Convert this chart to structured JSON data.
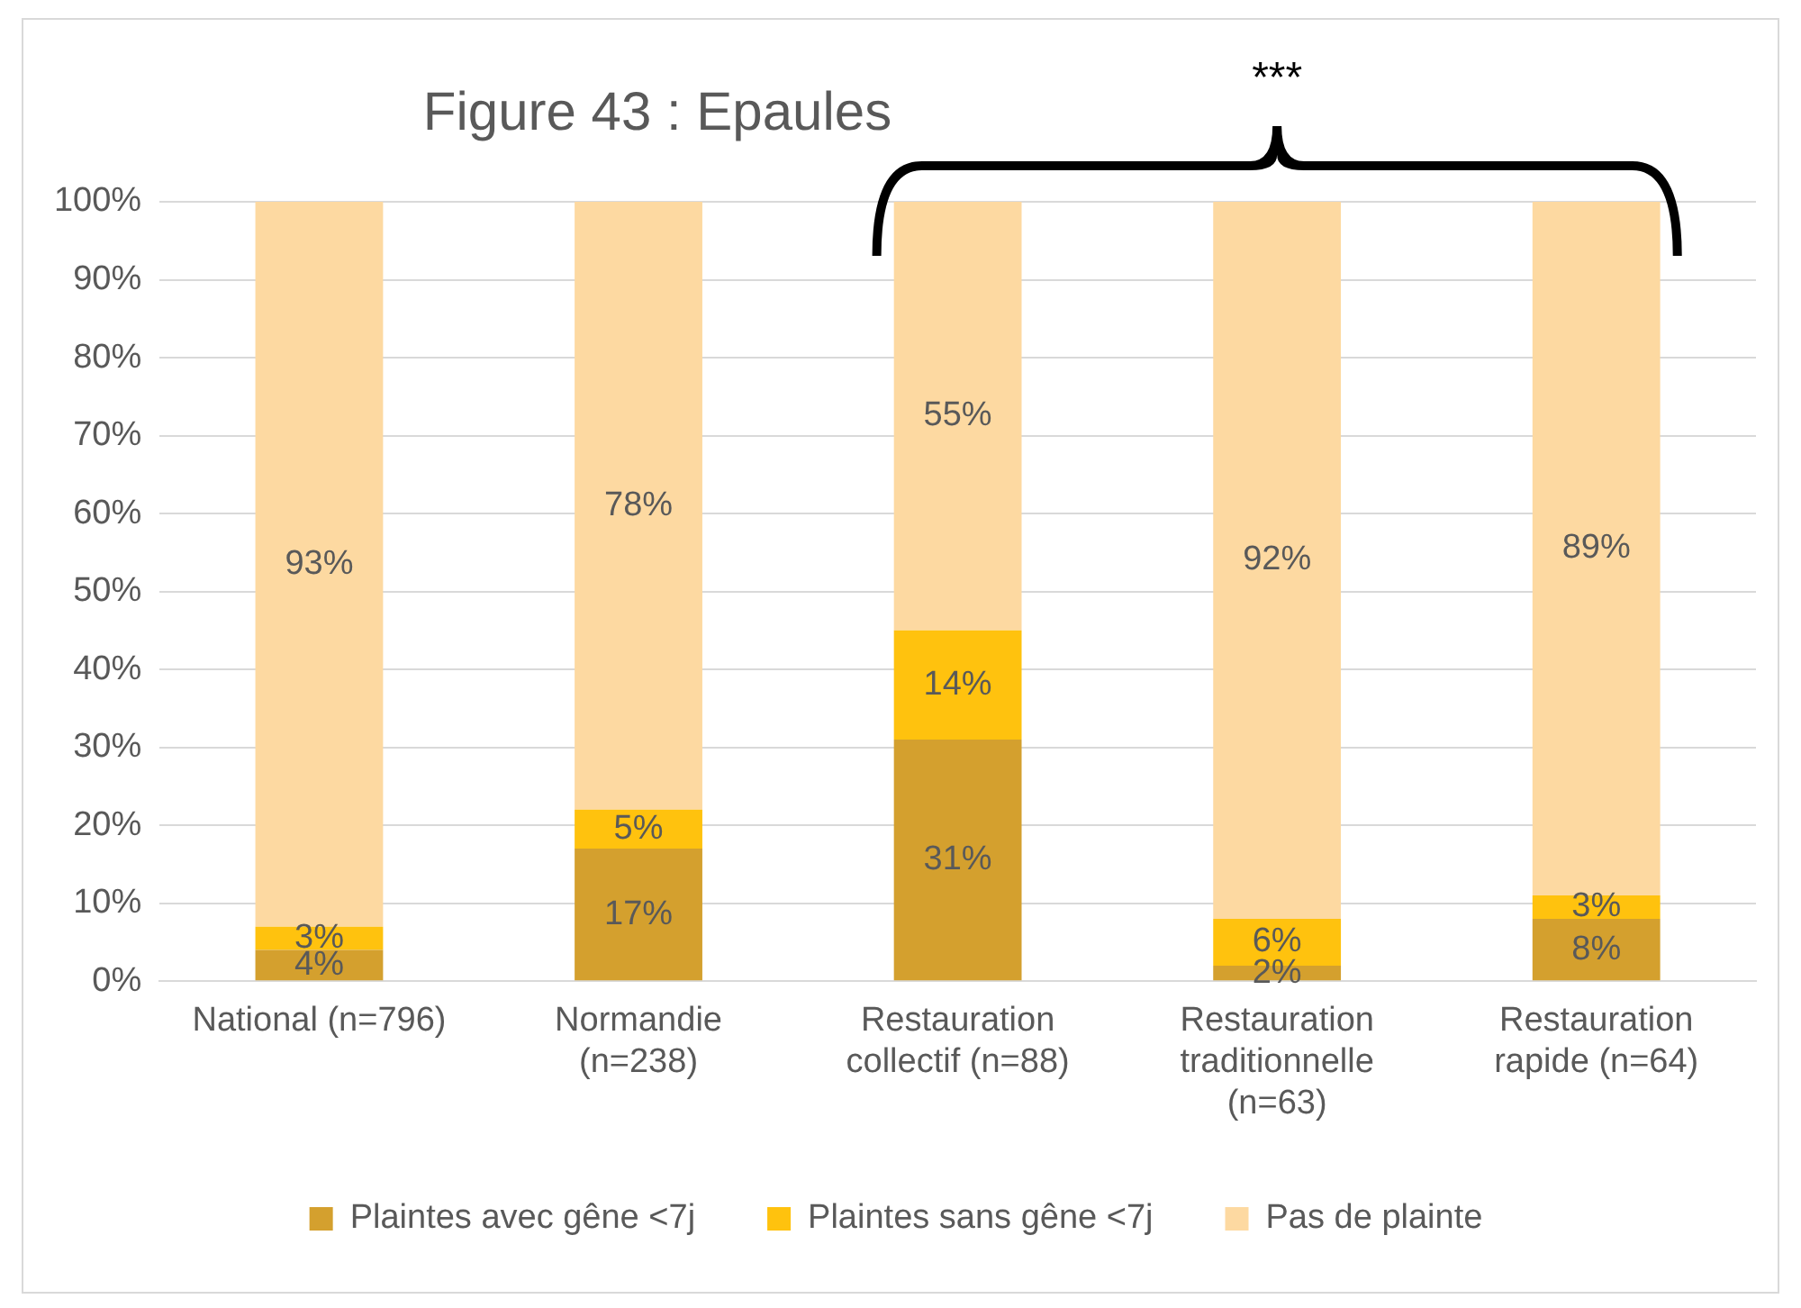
{
  "chart_data": {
    "type": "bar",
    "title": "Figure 43 : Epaules",
    "stacked": true,
    "categories": [
      "National (n=796)",
      "Normandie (n=238)",
      "Restauration collectif (n=88)",
      "Restauration traditionnelle (n=63)",
      "Restauration rapide (n=64)"
    ],
    "series": [
      {
        "name": "Plaintes avec gêne <7j",
        "color": "#d4a02e",
        "values": [
          4,
          17,
          31,
          2,
          8
        ],
        "value_labels": [
          "4%",
          "17%",
          "31%",
          "2%",
          "8%"
        ]
      },
      {
        "name": "Plaintes sans gêne <7j",
        "color": "#ffc20e",
        "values": [
          3,
          5,
          14,
          6,
          3
        ],
        "value_labels": [
          "3%",
          "5%",
          "14%",
          "6%",
          "3%"
        ]
      },
      {
        "name": "Pas de plainte",
        "color": "#fdd9a1",
        "values": [
          93,
          78,
          55,
          92,
          89
        ],
        "value_labels": [
          "93%",
          "78%",
          "55%",
          "92%",
          "89%"
        ]
      }
    ],
    "ylim": [
      0,
      100
    ],
    "yticks": [
      {
        "value": 0,
        "label": "0%"
      },
      {
        "value": 10,
        "label": "10%"
      },
      {
        "value": 20,
        "label": "20%"
      },
      {
        "value": 30,
        "label": "30%"
      },
      {
        "value": 40,
        "label": "40%"
      },
      {
        "value": 50,
        "label": "50%"
      },
      {
        "value": 60,
        "label": "60%"
      },
      {
        "value": 70,
        "label": "70%"
      },
      {
        "value": 80,
        "label": "80%"
      },
      {
        "value": 90,
        "label": "90%"
      },
      {
        "value": 100,
        "label": "100%"
      }
    ],
    "grid": "y",
    "legend": "bottom",
    "annotations": [
      "***"
    ]
  }
}
